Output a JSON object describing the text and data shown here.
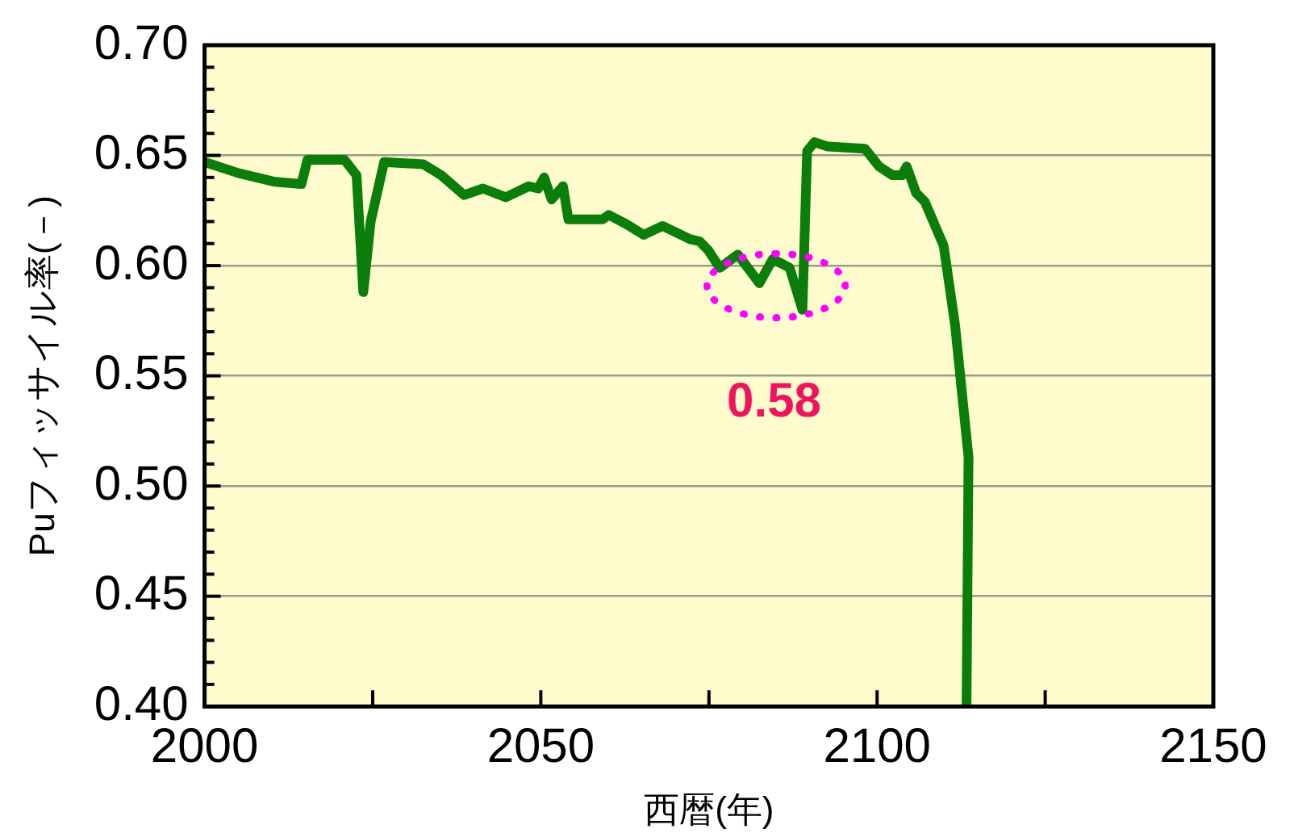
{
  "chart_data": {
    "type": "line",
    "xlabel": "西暦(年)",
    "ylabel": "Puフィッサイル率(－)",
    "xlim": [
      2000,
      2150
    ],
    "xticks": [
      2000,
      {
        "value": 2025,
        "label": null
      },
      2050,
      {
        "value": 2075,
        "label": null
      },
      2100,
      {
        "value": 2125,
        "label": null
      },
      2150
    ],
    "ylim": [
      0.4,
      0.7
    ],
    "yticks": [
      {
        "value": 0.4,
        "label": "0.40"
      },
      {
        "value": 0.41,
        "label": null
      },
      {
        "value": 0.42,
        "label": null
      },
      {
        "value": 0.43,
        "label": null
      },
      {
        "value": 0.44,
        "label": null
      },
      0.45,
      {
        "value": 0.46,
        "label": null
      },
      {
        "value": 0.47,
        "label": null
      },
      {
        "value": 0.48,
        "label": null
      },
      {
        "value": 0.49,
        "label": null
      },
      {
        "value": 0.5,
        "label": "0.50"
      },
      {
        "value": 0.51,
        "label": null
      },
      {
        "value": 0.52,
        "label": null
      },
      {
        "value": 0.53,
        "label": null
      },
      {
        "value": 0.54,
        "label": null
      },
      0.55,
      {
        "value": 0.56,
        "label": null
      },
      {
        "value": 0.57,
        "label": null
      },
      {
        "value": 0.58,
        "label": null
      },
      {
        "value": 0.59,
        "label": null
      },
      {
        "value": 0.6,
        "label": "0.60"
      },
      {
        "value": 0.61,
        "label": null
      },
      {
        "value": 0.62,
        "label": null
      },
      {
        "value": 0.63,
        "label": null
      },
      {
        "value": 0.64,
        "label": null
      },
      0.65,
      {
        "value": 0.66,
        "label": null
      },
      {
        "value": 0.67,
        "label": null
      },
      {
        "value": 0.68,
        "label": null
      },
      {
        "value": 0.69,
        "label": null
      },
      {
        "value": 0.7,
        "label": "0.70"
      }
    ],
    "grid": "y",
    "legend": false,
    "marker": "none",
    "line_style": "solid",
    "annotations": [
      {
        "text": "0.58",
        "x": 2089,
        "y": 0.58
      }
    ],
    "series": [
      {
        "color": "#0a7d0a",
        "x": [
          2000,
          2005,
          2010.5,
          2014.4,
          2015.3,
          2020.8,
          2022.6,
          2023.6,
          2024.7,
          2026.7,
          2032.5,
          2035.2,
          2038.6,
          2041.4,
          2044.8,
          2048.2,
          2049.6,
          2050.5,
          2051.6,
          2053.3,
          2054.1,
          2059.2,
          2060.1,
          2062.6,
          2065.3,
          2068.1,
          2072.2,
          2073.6,
          2074.9,
          2076.6,
          2079.3,
          2082.5,
          2084.5,
          2087,
          2088.9,
          2089.6,
          2090.7,
          2092.7,
          2098.2,
          2100.3,
          2102.3,
          2103.7,
          2104.4,
          2105.8,
          2107.1,
          2109.9,
          2111.6,
          2113.6,
          2113.3
        ],
        "values": [
          0.647,
          0.642,
          0.638,
          0.637,
          0.648,
          0.648,
          0.641,
          0.588,
          0.62,
          0.647,
          0.646,
          0.641,
          0.632,
          0.635,
          0.631,
          0.636,
          0.635,
          0.64,
          0.63,
          0.636,
          0.621,
          0.621,
          0.623,
          0.619,
          0.614,
          0.618,
          0.612,
          0.611,
          0.607,
          0.599,
          0.605,
          0.592,
          0.603,
          0.599,
          0.58,
          0.652,
          0.656,
          0.654,
          0.653,
          0.645,
          0.641,
          0.641,
          0.645,
          0.633,
          0.629,
          0.609,
          0.573,
          0.513,
          0.4
        ]
      }
    ]
  }
}
